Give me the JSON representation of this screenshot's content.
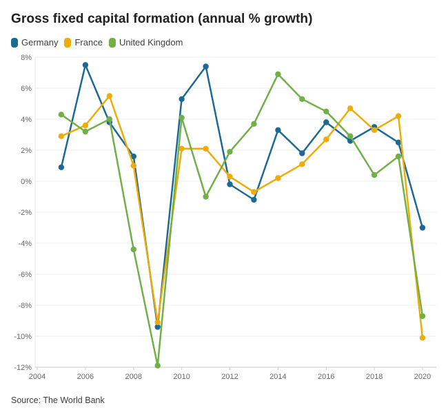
{
  "header": {
    "title": "Gross fixed capital formation (annual % growth)"
  },
  "legend": {
    "items": [
      {
        "label": "Germany",
        "color": "#1d6996"
      },
      {
        "label": "France",
        "color": "#edad08"
      },
      {
        "label": "United Kingdom",
        "color": "#73af48"
      }
    ]
  },
  "chart_data": {
    "type": "line",
    "title": "Gross fixed capital formation (annual % growth)",
    "x": [
      2005,
      2006,
      2007,
      2008,
      2009,
      2010,
      2011,
      2012,
      2013,
      2014,
      2015,
      2016,
      2017,
      2018,
      2019,
      2020
    ],
    "series": [
      {
        "name": "Germany",
        "color": "#1d6996",
        "values": [
          0.9,
          7.5,
          3.8,
          1.6,
          -9.4,
          5.3,
          7.4,
          -0.2,
          -1.2,
          3.3,
          1.8,
          3.8,
          2.6,
          3.5,
          2.5,
          -3.0
        ]
      },
      {
        "name": "France",
        "color": "#edad08",
        "values": [
          2.9,
          3.6,
          5.5,
          1.0,
          -9.1,
          2.1,
          2.1,
          0.3,
          -0.7,
          0.2,
          1.1,
          2.7,
          4.7,
          3.3,
          4.2,
          -10.1
        ]
      },
      {
        "name": "United Kingdom",
        "color": "#73af48",
        "values": [
          4.3,
          3.2,
          4.0,
          -4.4,
          -11.9,
          4.1,
          -1.0,
          1.9,
          3.7,
          6.9,
          5.3,
          4.5,
          2.9,
          0.4,
          1.6,
          -8.7
        ]
      }
    ],
    "xlabel": "",
    "ylabel": "",
    "xlim": [
      2004,
      2020
    ],
    "ylim": [
      -12,
      8
    ],
    "xticks": [
      2004,
      2006,
      2008,
      2010,
      2012,
      2014,
      2016,
      2018,
      2020
    ],
    "ytick_step": 2,
    "ytick_suffix": "%",
    "grid": true,
    "marker": "circle",
    "legend_position": "top-left"
  },
  "source": {
    "label": "Source: The World Bank"
  },
  "colors": {
    "grid": "#ececec",
    "axis_bottom": "#c9c9c9",
    "axis_left": "#e4e4e4",
    "tick": "#cfcfcf",
    "tick_label": "#666666",
    "background": "#ffffff"
  }
}
